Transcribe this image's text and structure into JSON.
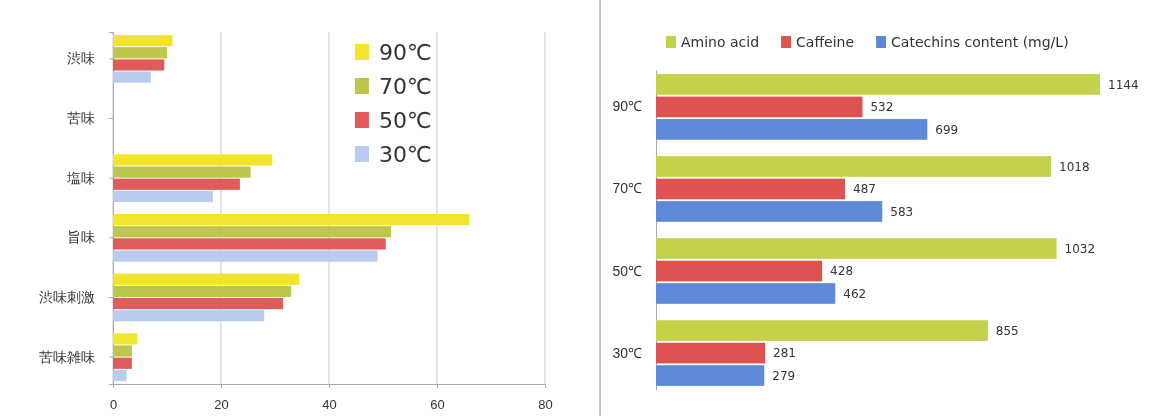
{
  "chart_data": [
    {
      "type": "bar",
      "orientation": "horizontal",
      "categories": [
        "渋味",
        "苦味",
        "塩味",
        "旨味",
        "渋味刺激",
        "苦味雑味"
      ],
      "series": [
        {
          "name": "90℃",
          "color": "#f2e42c",
          "values": [
            11,
            null,
            29.5,
            66,
            34.5,
            4.5
          ]
        },
        {
          "name": "70℃",
          "color": "#bec64c",
          "values": [
            10,
            null,
            25.5,
            51.5,
            33,
            3.5
          ]
        },
        {
          "name": "50℃",
          "color": "#e05b5b",
          "values": [
            9.5,
            null,
            23.5,
            50.5,
            31.5,
            3.5
          ]
        },
        {
          "name": "30℃",
          "color": "#b9cbee",
          "values": [
            7,
            null,
            18.5,
            49,
            28,
            2.5
          ]
        }
      ],
      "xlim": [
        0,
        80
      ],
      "xticks": [
        0,
        20,
        40,
        60,
        80
      ],
      "grid": "x",
      "legend": "top right"
    },
    {
      "type": "bar",
      "orientation": "horizontal",
      "categories": [
        "90℃",
        "70℃",
        "50℃",
        "30℃"
      ],
      "series": [
        {
          "name": "Amino acid",
          "color": "#c4d14b",
          "values": [
            1144,
            1018,
            1032,
            855
          ]
        },
        {
          "name": "Caffeine",
          "color": "#de5252",
          "values": [
            532,
            487,
            428,
            281
          ]
        },
        {
          "name": "Catechins content  (mg/L)",
          "color": "#5e89d6",
          "values": [
            699,
            583,
            462,
            279
          ]
        }
      ],
      "data_labels": true,
      "tick_labels": "y",
      "legend": "top"
    }
  ]
}
